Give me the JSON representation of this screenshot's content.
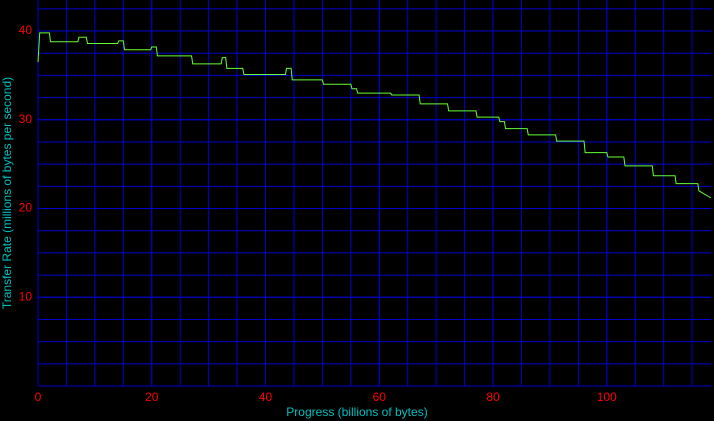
{
  "chart_data": {
    "type": "line",
    "x_label": "Progress (billions of bytes)",
    "y_label": "Transfer Rate (millions of bytes per second)",
    "xlim": [
      0,
      118.5
    ],
    "ylim": [
      0,
      43.5
    ],
    "xticks": [
      0,
      20,
      40,
      60,
      80,
      100
    ],
    "yticks": [
      10,
      20,
      30,
      40
    ],
    "grid": true,
    "x_grid_step": 5,
    "y_grid_step": 2.5,
    "background": "#000000",
    "grid_color": "#0000cc",
    "tick_color": "#ff0000",
    "label_color": "#00c0c0",
    "series": [
      {
        "color": "#66ff33",
        "x": [
          0,
          0.3,
          2,
          2.2,
          7,
          7.2,
          8.5,
          8.7,
          14,
          14.2,
          15,
          15.2,
          19.8,
          20,
          20.8,
          21,
          27,
          27.2,
          32.2,
          32.4,
          33,
          33.2,
          36,
          36.2,
          43.5,
          43.7,
          44.5,
          44.7,
          50,
          50.2,
          55,
          55.2,
          56,
          56.2,
          62,
          62.2,
          67,
          67.2,
          72,
          72.2,
          77,
          77.2,
          81,
          81.2,
          82,
          82.2,
          86,
          86.2,
          91,
          91.2,
          96,
          96.2,
          100,
          100.2,
          103,
          103.2,
          108,
          108.2,
          112,
          112.2,
          116,
          116.2,
          118.3
        ],
        "values": [
          36.5,
          39.8,
          39.8,
          38.8,
          38.8,
          39.3,
          39.3,
          38.6,
          38.6,
          38.9,
          38.9,
          37.9,
          37.9,
          38.2,
          38.2,
          37.2,
          37.2,
          36.3,
          36.3,
          37.0,
          37.0,
          35.8,
          35.8,
          35.1,
          35.1,
          35.8,
          35.8,
          34.5,
          34.5,
          34.0,
          34.0,
          33.5,
          33.5,
          33.0,
          33.0,
          32.8,
          32.8,
          31.8,
          31.8,
          31.0,
          31.0,
          30.3,
          30.3,
          29.8,
          29.8,
          29.0,
          29.0,
          28.3,
          28.3,
          27.6,
          27.6,
          26.3,
          26.3,
          25.8,
          25.8,
          24.8,
          24.8,
          23.7,
          23.7,
          22.8,
          22.8,
          22.0,
          21.2
        ]
      }
    ]
  }
}
